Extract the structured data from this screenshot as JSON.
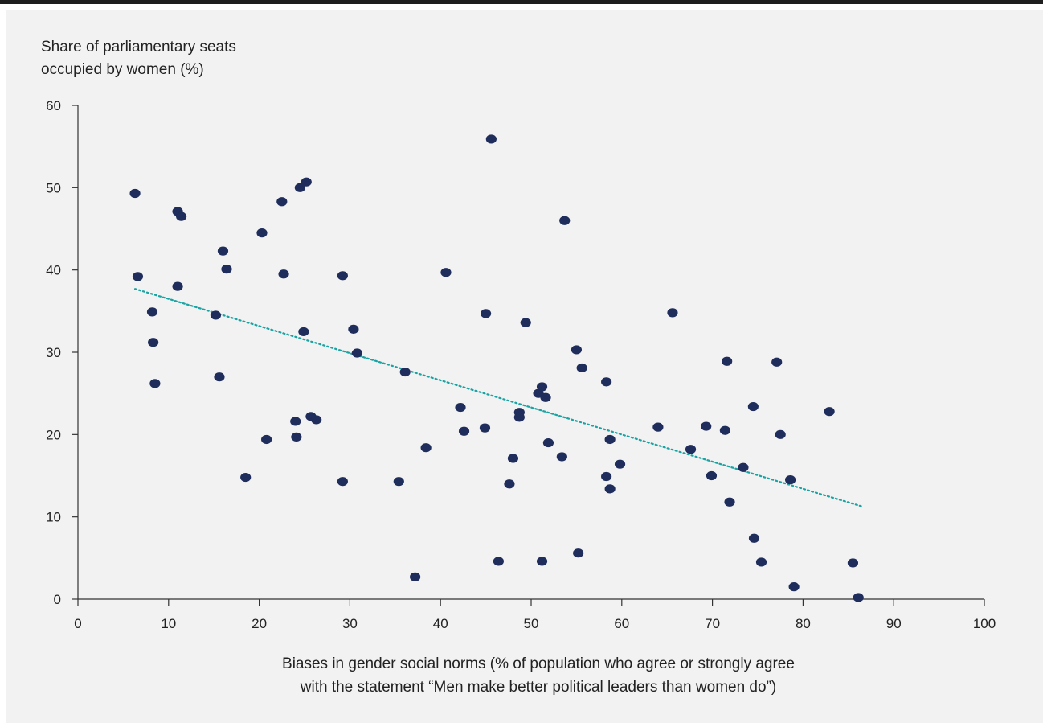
{
  "chart_data": {
    "type": "scatter",
    "ylabel": "Share of parliamentary seats\noccupied by women (%)",
    "xlabel": "Biases in gender social norms (% of population who agree or strongly agree\nwith the statement “Men make better political leaders than women do”)",
    "xlim": [
      0,
      100
    ],
    "ylim": [
      0,
      60
    ],
    "x_ticks": [
      0,
      10,
      20,
      30,
      40,
      50,
      60,
      70,
      80,
      90,
      100
    ],
    "y_ticks": [
      0,
      10,
      20,
      30,
      40,
      50,
      60
    ],
    "grid": false,
    "legend": "none",
    "series": [
      {
        "color": "#1f2d5c",
        "points": [
          [
            6.3,
            49.3
          ],
          [
            6.6,
            39.2
          ],
          [
            8.2,
            34.9
          ],
          [
            8.3,
            31.2
          ],
          [
            8.5,
            26.2
          ],
          [
            11.0,
            47.1
          ],
          [
            11.4,
            46.5
          ],
          [
            11.0,
            38.0
          ],
          [
            15.2,
            34.5
          ],
          [
            15.6,
            27.0
          ],
          [
            16.0,
            42.3
          ],
          [
            16.4,
            40.1
          ],
          [
            18.5,
            14.8
          ],
          [
            20.3,
            44.5
          ],
          [
            20.8,
            19.4
          ],
          [
            22.5,
            48.3
          ],
          [
            22.7,
            39.5
          ],
          [
            24.0,
            21.6
          ],
          [
            24.1,
            19.7
          ],
          [
            24.5,
            50.0
          ],
          [
            24.9,
            32.5
          ],
          [
            25.2,
            50.7
          ],
          [
            25.7,
            22.2
          ],
          [
            26.3,
            21.8
          ],
          [
            29.2,
            39.3
          ],
          [
            29.2,
            14.3
          ],
          [
            30.4,
            32.8
          ],
          [
            30.8,
            29.9
          ],
          [
            35.4,
            14.3
          ],
          [
            36.1,
            27.6
          ],
          [
            37.2,
            2.7
          ],
          [
            38.4,
            18.4
          ],
          [
            40.6,
            39.7
          ],
          [
            42.2,
            23.3
          ],
          [
            42.6,
            20.4
          ],
          [
            44.9,
            20.8
          ],
          [
            45.0,
            34.7
          ],
          [
            45.6,
            55.9
          ],
          [
            46.4,
            4.6
          ],
          [
            47.6,
            14.0
          ],
          [
            48.0,
            17.1
          ],
          [
            48.7,
            22.7
          ],
          [
            48.7,
            22.1
          ],
          [
            49.4,
            33.6
          ],
          [
            50.8,
            25.0
          ],
          [
            51.2,
            25.8
          ],
          [
            51.2,
            4.6
          ],
          [
            51.6,
            24.5
          ],
          [
            51.9,
            19.0
          ],
          [
            53.4,
            17.3
          ],
          [
            53.7,
            46.0
          ],
          [
            55.0,
            30.3
          ],
          [
            55.2,
            5.6
          ],
          [
            55.6,
            28.1
          ],
          [
            58.3,
            26.4
          ],
          [
            58.3,
            14.9
          ],
          [
            58.7,
            19.4
          ],
          [
            58.7,
            13.4
          ],
          [
            59.8,
            16.4
          ],
          [
            64.0,
            20.9
          ],
          [
            65.6,
            34.8
          ],
          [
            67.6,
            18.2
          ],
          [
            69.3,
            21.0
          ],
          [
            69.9,
            15.0
          ],
          [
            71.4,
            20.5
          ],
          [
            71.6,
            28.9
          ],
          [
            71.9,
            11.8
          ],
          [
            73.4,
            16.0
          ],
          [
            74.5,
            23.4
          ],
          [
            74.6,
            7.4
          ],
          [
            75.4,
            4.5
          ],
          [
            77.1,
            28.8
          ],
          [
            77.5,
            20.0
          ],
          [
            78.6,
            14.5
          ],
          [
            79.0,
            1.5
          ],
          [
            82.9,
            22.8
          ],
          [
            85.5,
            4.4
          ],
          [
            86.1,
            0.2
          ]
        ]
      }
    ],
    "trendline": {
      "style": "dotted",
      "color": "#1aa3a3",
      "x": [
        6.3,
        86.4
      ],
      "y": [
        37.7,
        11.3
      ]
    }
  }
}
